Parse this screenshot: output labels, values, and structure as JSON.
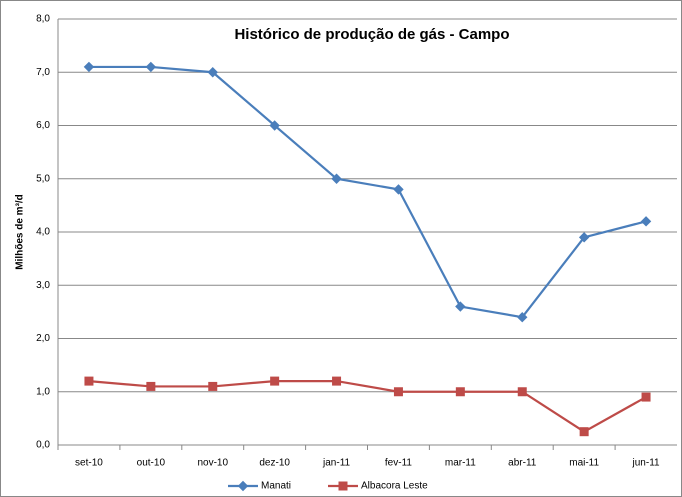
{
  "chart_data": {
    "type": "line",
    "title": "Histórico de produção de gás - Campo",
    "y_label": "Milhões de m³/d",
    "categories": [
      "set-10",
      "out-10",
      "nov-10",
      "dez-10",
      "jan-11",
      "fev-11",
      "mar-11",
      "abr-11",
      "mai-11",
      "jun-11"
    ],
    "series": [
      {
        "name": "Manati",
        "color": "#4a7ebb",
        "marker": "diamond",
        "values": [
          7.1,
          7.1,
          7.0,
          6.0,
          5.0,
          4.8,
          2.6,
          2.4,
          3.9,
          4.2
        ]
      },
      {
        "name": "Albacora Leste",
        "color": "#be4b48",
        "marker": "square",
        "values": [
          1.2,
          1.1,
          1.1,
          1.2,
          1.2,
          1.0,
          1.0,
          1.0,
          0.25,
          0.9
        ]
      }
    ],
    "ylim": [
      0,
      8
    ],
    "yticks": [
      {
        "value": 0,
        "label": "0,0"
      },
      {
        "value": 1,
        "label": "1,0"
      },
      {
        "value": 2,
        "label": "2,0"
      },
      {
        "value": 3,
        "label": "3,0"
      },
      {
        "value": 4,
        "label": "4,0"
      },
      {
        "value": 5,
        "label": "5,0"
      },
      {
        "value": 6,
        "label": "6,0"
      },
      {
        "value": 7,
        "label": "7,0"
      },
      {
        "value": 8,
        "label": "8,0"
      }
    ],
    "grid": true,
    "legend": "bottom"
  }
}
